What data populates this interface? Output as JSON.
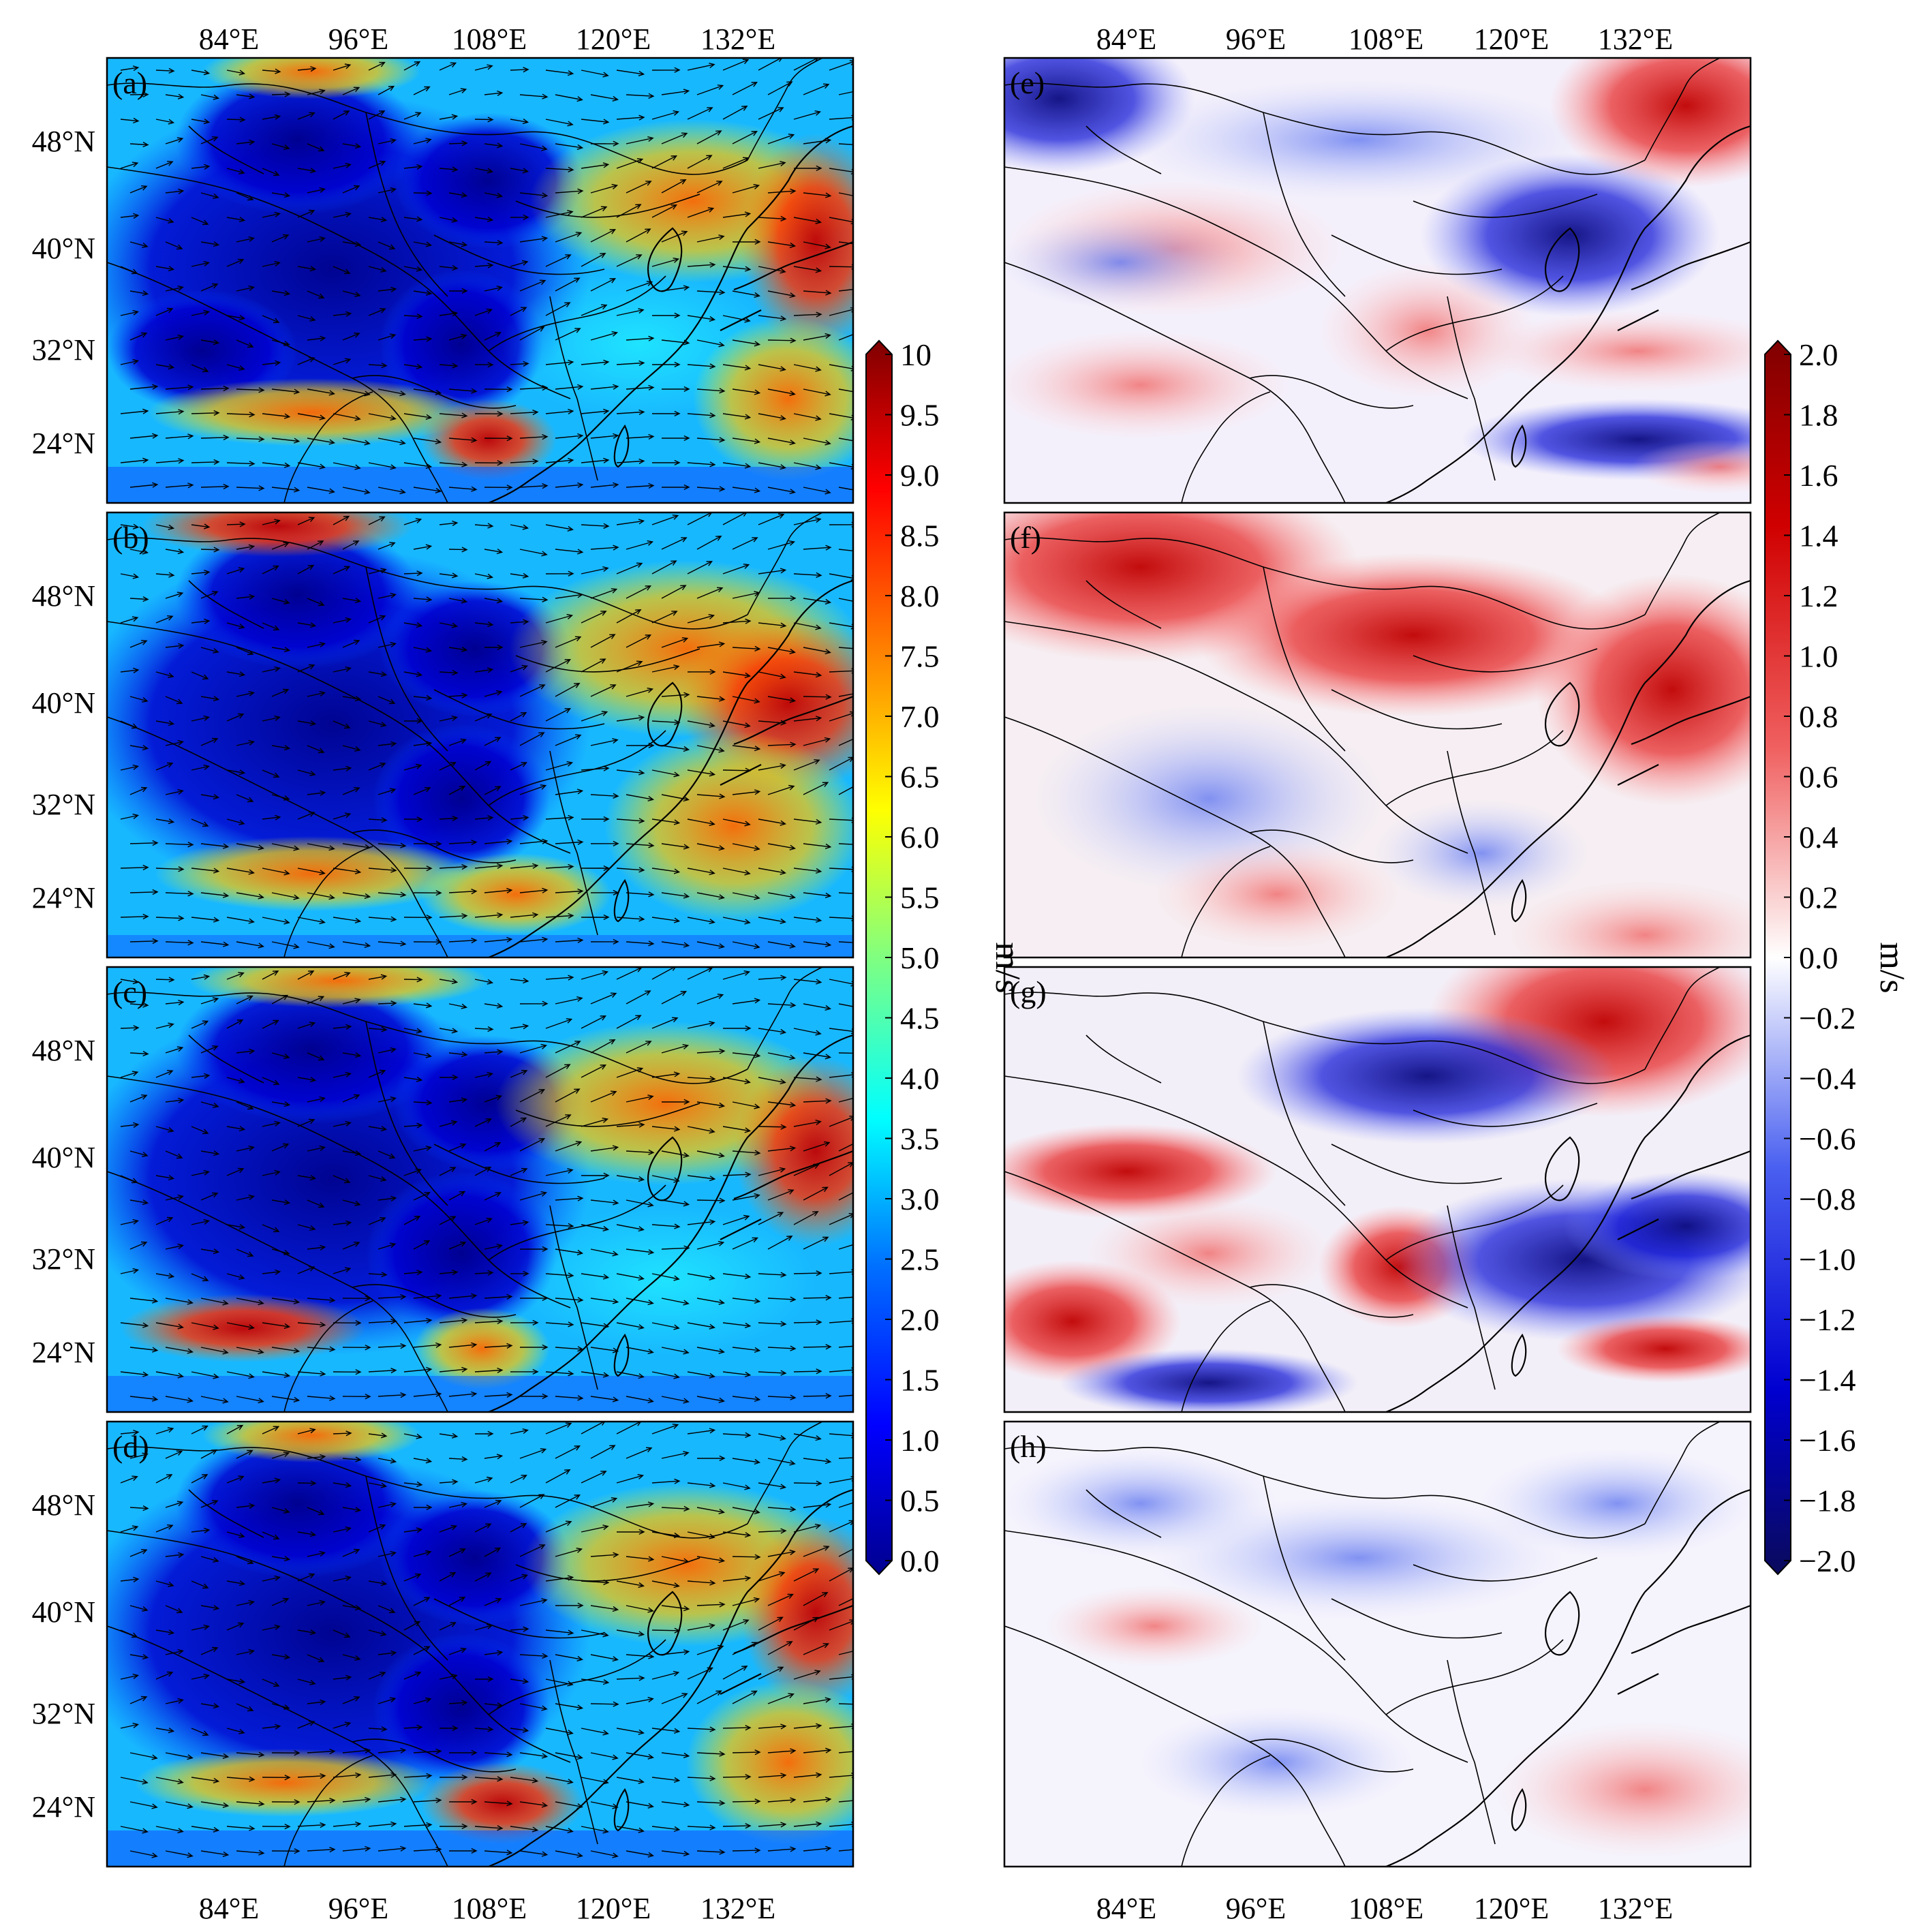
{
  "figure": {
    "lon_labels": [
      "84°E",
      "96°E",
      "108°E",
      "120°E",
      "132°E"
    ],
    "lat_labels": [
      "48°N",
      "40°N",
      "32°N",
      "24°N"
    ],
    "left_colorbar": {
      "unit": "m/s",
      "ticks": [
        "0.0",
        "0.5",
        "1.0",
        "1.5",
        "2.0",
        "2.5",
        "3.0",
        "3.5",
        "4.0",
        "4.5",
        "5.0",
        "5.5",
        "6.0",
        "6.5",
        "7.0",
        "7.5",
        "8.0",
        "8.5",
        "9.0",
        "9.5",
        "10"
      ],
      "min": 0,
      "max": 10,
      "colormap": "jet",
      "colors": [
        "#00008f",
        "#0000ff",
        "#0080ff",
        "#00ffff",
        "#80ff80",
        "#ffff00",
        "#ff8000",
        "#ff0000",
        "#800000"
      ]
    },
    "right_colorbar": {
      "unit": "m/s",
      "ticks": [
        "2.0",
        "1.8",
        "1.6",
        "1.4",
        "1.2",
        "1.0",
        "0.8",
        "0.6",
        "0.4",
        "0.2",
        "0.0",
        "−0.2",
        "−0.4",
        "−0.6",
        "−0.8",
        "−1.0",
        "−1.2",
        "−1.4",
        "−1.6",
        "−1.8",
        "−2.0"
      ],
      "min": -2,
      "max": 2,
      "colormap": "diverging blue-white-red",
      "colors": [
        "#0a0a5c",
        "#0000d0",
        "#4a60f0",
        "#ffffff",
        "#f06060",
        "#d00000",
        "#800000"
      ]
    },
    "panels": [
      {
        "id": "a",
        "label": "(a)",
        "type": "wind-speed",
        "vectors": true
      },
      {
        "id": "b",
        "label": "(b)",
        "type": "wind-speed",
        "vectors": true
      },
      {
        "id": "c",
        "label": "(c)",
        "type": "wind-speed",
        "vectors": true
      },
      {
        "id": "d",
        "label": "(d)",
        "type": "wind-speed",
        "vectors": true
      },
      {
        "id": "e",
        "label": "(e)",
        "type": "difference",
        "vectors": false
      },
      {
        "id": "f",
        "label": "(f)",
        "type": "difference",
        "vectors": false
      },
      {
        "id": "g",
        "label": "(g)",
        "type": "difference",
        "vectors": false
      },
      {
        "id": "h",
        "label": "(h)",
        "type": "difference",
        "vectors": false
      }
    ]
  }
}
